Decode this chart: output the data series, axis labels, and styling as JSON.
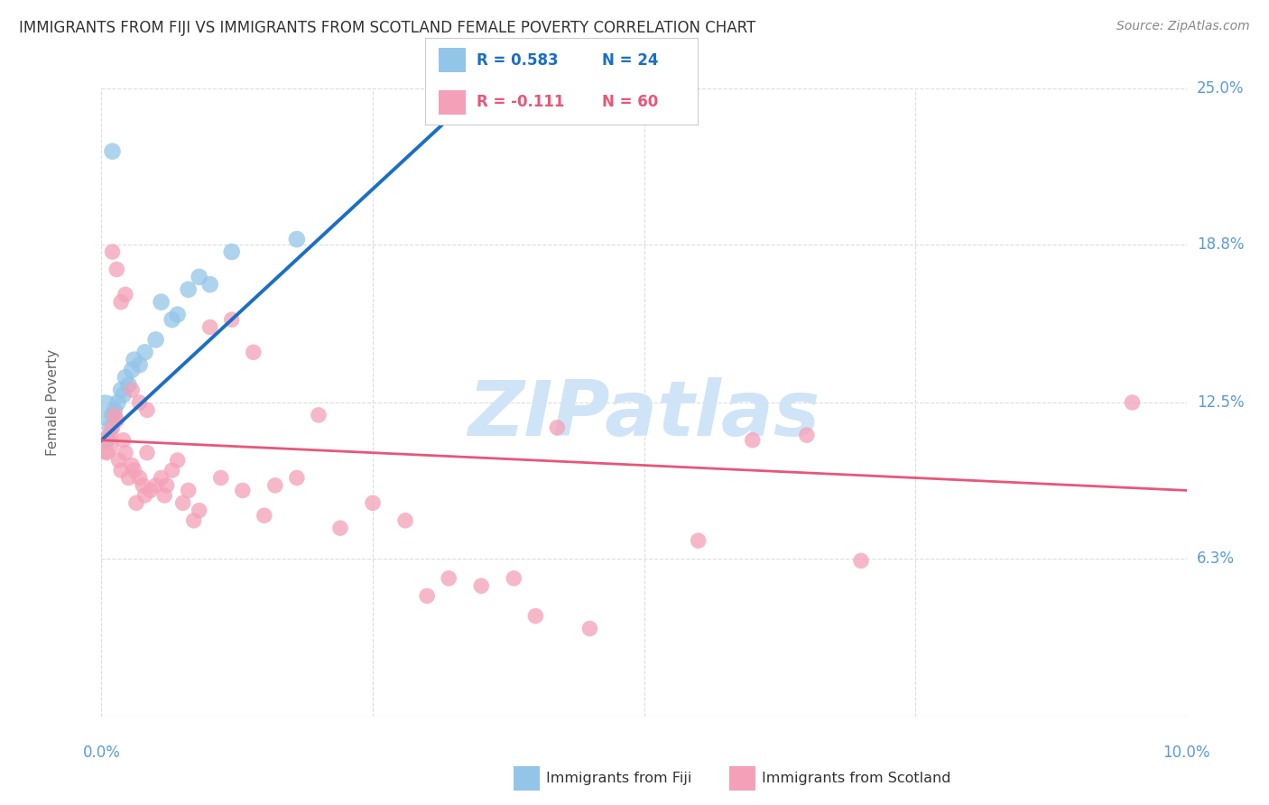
{
  "title": "IMMIGRANTS FROM FIJI VS IMMIGRANTS FROM SCOTLAND FEMALE POVERTY CORRELATION CHART",
  "source": "Source: ZipAtlas.com",
  "ylabel": "Female Poverty",
  "xlim": [
    0.0,
    10.0
  ],
  "ylim": [
    0.0,
    25.0
  ],
  "yticks": [
    6.3,
    12.5,
    18.8,
    25.0
  ],
  "ytick_labels": [
    "6.3%",
    "12.5%",
    "18.8%",
    "25.0%"
  ],
  "fiji_color": "#93c5e8",
  "scotland_color": "#f4a0b8",
  "fiji_line_color": "#1a6fc4",
  "scotland_line_color": "#e8567a",
  "dashed_extension_color": "#b0c8e8",
  "background_color": "#ffffff",
  "grid_color": "#dddddd",
  "title_color": "#333333",
  "axis_label_color": "#5b9bd5",
  "legend_r_fiji": "R = 0.583",
  "legend_n_fiji": "N = 24",
  "legend_r_scotland": "R = -0.111",
  "legend_n_scotland": "N = 60",
  "fiji_scatter_x": [
    0.05,
    0.08,
    0.1,
    0.12,
    0.15,
    0.18,
    0.2,
    0.22,
    0.25,
    0.28,
    0.3,
    0.35,
    0.4,
    0.5,
    0.55,
    0.65,
    0.7,
    0.8,
    0.9,
    1.0,
    1.2,
    1.8,
    0.03,
    0.1
  ],
  "fiji_scatter_y": [
    11.0,
    11.5,
    12.0,
    12.2,
    12.5,
    13.0,
    12.8,
    13.5,
    13.2,
    13.8,
    14.2,
    14.0,
    14.5,
    15.0,
    16.5,
    15.8,
    16.0,
    17.0,
    17.5,
    17.2,
    18.5,
    19.0,
    12.2,
    22.5
  ],
  "scotland_scatter_x": [
    0.03,
    0.05,
    0.08,
    0.1,
    0.12,
    0.14,
    0.16,
    0.18,
    0.2,
    0.22,
    0.25,
    0.28,
    0.3,
    0.32,
    0.35,
    0.38,
    0.4,
    0.42,
    0.45,
    0.5,
    0.55,
    0.58,
    0.6,
    0.65,
    0.7,
    0.75,
    0.8,
    0.85,
    0.9,
    1.0,
    1.1,
    1.2,
    1.3,
    1.4,
    1.5,
    1.6,
    1.8,
    2.0,
    2.2,
    2.5,
    2.8,
    3.0,
    3.2,
    3.5,
    3.8,
    4.0,
    4.5,
    5.5,
    6.0,
    6.5,
    7.0,
    0.1,
    0.14,
    0.18,
    0.22,
    0.28,
    0.35,
    0.42,
    9.5,
    4.2
  ],
  "scotland_scatter_y": [
    10.8,
    10.5,
    11.2,
    11.5,
    12.0,
    11.8,
    10.2,
    9.8,
    11.0,
    10.5,
    9.5,
    10.0,
    9.8,
    8.5,
    9.5,
    9.2,
    8.8,
    10.5,
    9.0,
    9.2,
    9.5,
    8.8,
    9.2,
    9.8,
    10.2,
    8.5,
    9.0,
    7.8,
    8.2,
    15.5,
    9.5,
    15.8,
    9.0,
    14.5,
    8.0,
    9.2,
    9.5,
    12.0,
    7.5,
    8.5,
    7.8,
    4.8,
    5.5,
    5.2,
    5.5,
    4.0,
    3.5,
    7.0,
    11.0,
    11.2,
    6.2,
    18.5,
    17.8,
    16.5,
    16.8,
    13.0,
    12.5,
    12.2,
    12.5,
    11.5
  ],
  "watermark_text": "ZIPatlas",
  "watermark_color": "#d0e4f7"
}
